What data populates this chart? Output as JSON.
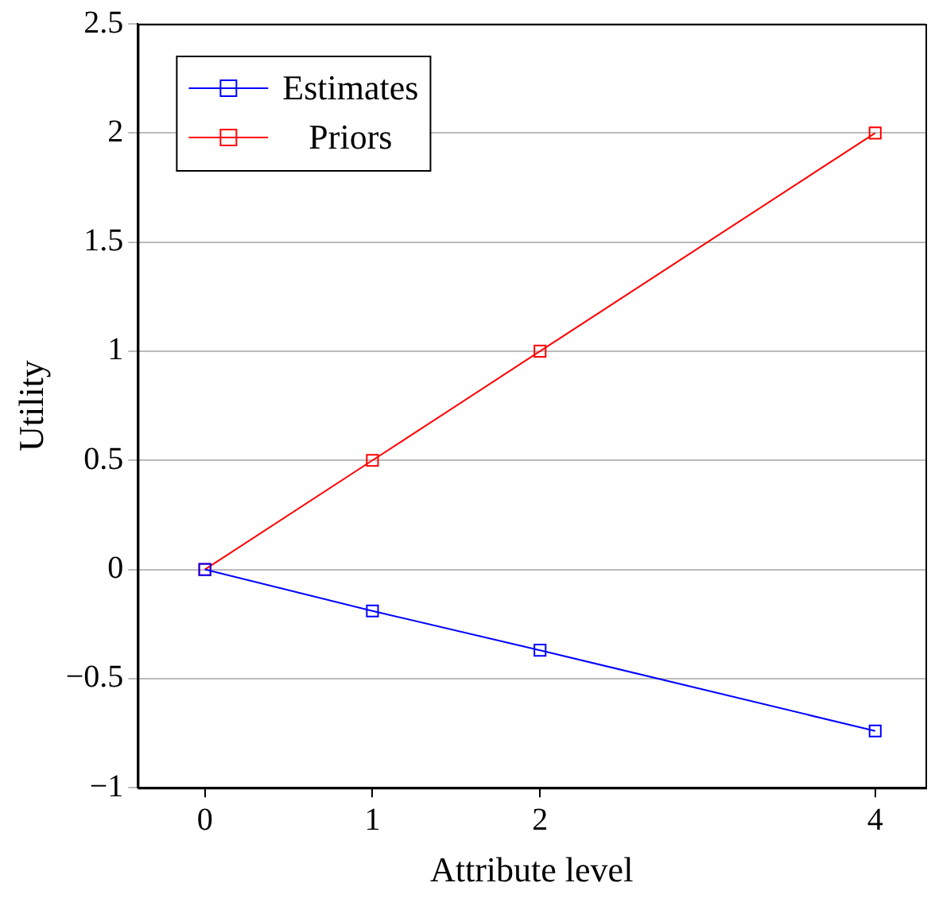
{
  "chart_data": {
    "type": "line",
    "xlabel": "Attribute level",
    "ylabel": "Utility",
    "x": [
      0,
      1,
      2,
      4
    ],
    "series": [
      {
        "name": "Estimates",
        "color": "#0000ff",
        "values": [
          0,
          -0.19,
          -0.37,
          -0.74
        ]
      },
      {
        "name": "Priors",
        "color": "#ff0000",
        "values": [
          0,
          0.5,
          1,
          2
        ]
      }
    ],
    "xlim": [
      -0.4,
      4.3
    ],
    "xticks": [
      0,
      1,
      2,
      4
    ],
    "ylim": [
      -1,
      2.5
    ],
    "yticks": [
      {
        "value": -1,
        "label": "−1"
      },
      {
        "value": -0.5,
        "label": "−0.5"
      },
      0,
      0.5,
      1,
      1.5,
      2,
      2.5
    ],
    "grid": "y",
    "legend": "top left",
    "marker": "square",
    "line_style": "solid"
  }
}
